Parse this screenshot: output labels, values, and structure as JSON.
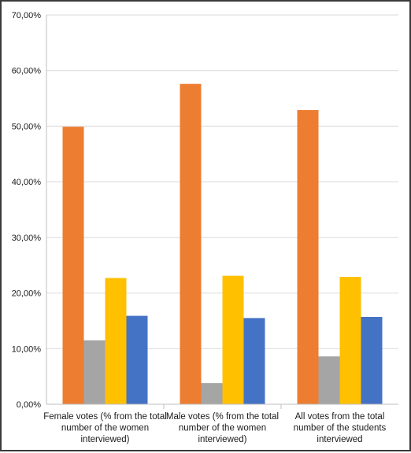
{
  "chart_data": {
    "type": "bar",
    "title": "",
    "xlabel": "",
    "ylabel": "",
    "ylim": [
      0,
      0.7
    ],
    "yticks": [
      0,
      0.1,
      0.2,
      0.3,
      0.4,
      0.5,
      0.6,
      0.7
    ],
    "ytick_labels": [
      "0,00%",
      "10,00%",
      "20,00%",
      "30,00%",
      "40,00%",
      "50,00%",
      "60,00%",
      "70,00%"
    ],
    "grid": true,
    "legend": "none",
    "categories": [
      [
        "Female votes (% from the total",
        "number of the women",
        "interviewed)"
      ],
      [
        "Male votes (% from the total",
        "number of the women",
        "interviewed)"
      ],
      [
        "All votes from the total",
        "number of the students",
        "interviewed"
      ]
    ],
    "series": [
      {
        "color": "#ed7d31",
        "values": [
          0.499,
          0.576,
          0.529
        ]
      },
      {
        "color": "#a5a5a5",
        "values": [
          0.115,
          0.038,
          0.086
        ]
      },
      {
        "color": "#ffc000",
        "values": [
          0.227,
          0.231,
          0.229
        ]
      },
      {
        "color": "#4472c4",
        "values": [
          0.159,
          0.155,
          0.157
        ]
      }
    ]
  }
}
